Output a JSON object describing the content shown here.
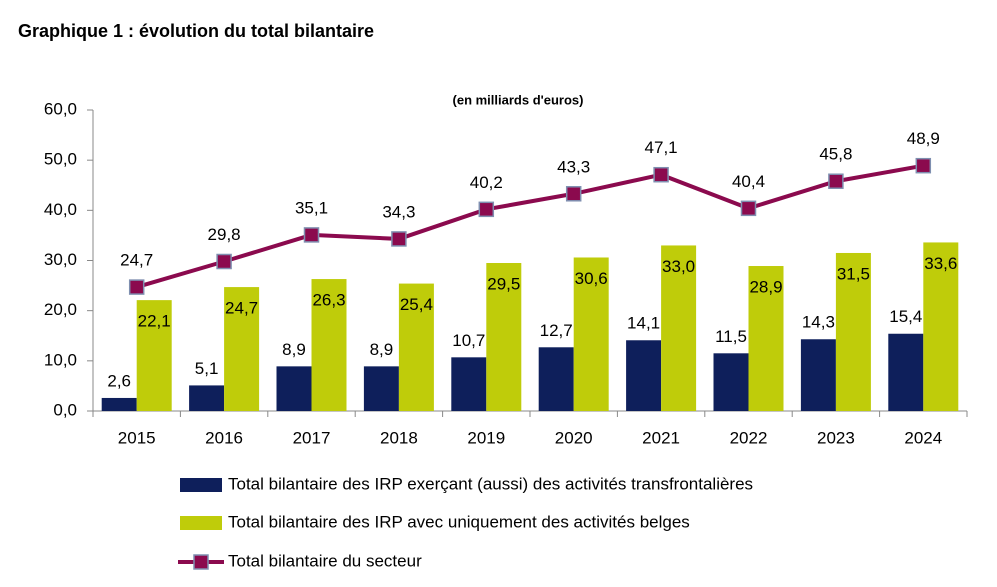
{
  "chart_data": {
    "type": "bar",
    "title": "Graphique 1 : évolution du total bilantaire",
    "subtitle": "(en milliards d'euros)",
    "categories": [
      "2015",
      "2016",
      "2017",
      "2018",
      "2019",
      "2020",
      "2021",
      "2022",
      "2023",
      "2024"
    ],
    "ylim": [
      0,
      60
    ],
    "yticks": [
      {
        "value": 0,
        "label": "0,0"
      },
      {
        "value": 10,
        "label": "10,0"
      },
      {
        "value": 20,
        "label": "20,0"
      },
      {
        "value": 30,
        "label": "30,0"
      },
      {
        "value": 40,
        "label": "40,0"
      },
      {
        "value": 50,
        "label": "50,0"
      },
      {
        "value": 60,
        "label": "60,0"
      }
    ],
    "series": [
      {
        "name": "Total bilantaire des IRP exerçant (aussi) des activités transfrontalières",
        "color": "#0e1f5b",
        "type": "bar",
        "values": [
          2.6,
          5.1,
          8.9,
          8.9,
          10.7,
          12.7,
          14.1,
          11.5,
          14.3,
          15.4
        ],
        "value_labels": [
          "2,6",
          "5,1",
          "8,9",
          "8,9",
          "10,7",
          "12,7",
          "14,1",
          "11,5",
          "14,3",
          "15,4"
        ]
      },
      {
        "name": "Total bilantaire des IRP avec uniquement des activités belges",
        "color": "#bfcc0a",
        "type": "bar",
        "values": [
          22.1,
          24.7,
          26.3,
          25.4,
          29.5,
          30.6,
          33.0,
          28.9,
          31.5,
          33.6
        ],
        "value_labels": [
          "22,1",
          "24,7",
          "26,3",
          "25,4",
          "29,5",
          "30,6",
          "33,0",
          "28,9",
          "31,5",
          "33,6"
        ]
      },
      {
        "name": "Total bilantaire du secteur",
        "color": "#8b0a4e",
        "type": "line",
        "values": [
          24.7,
          29.8,
          35.1,
          34.3,
          40.2,
          43.3,
          47.1,
          40.4,
          45.8,
          48.9
        ],
        "value_labels": [
          "24,7",
          "29,8",
          "35,1",
          "34,3",
          "40,2",
          "43,3",
          "47,1",
          "40,4",
          "45,8",
          "48,9"
        ]
      }
    ]
  }
}
